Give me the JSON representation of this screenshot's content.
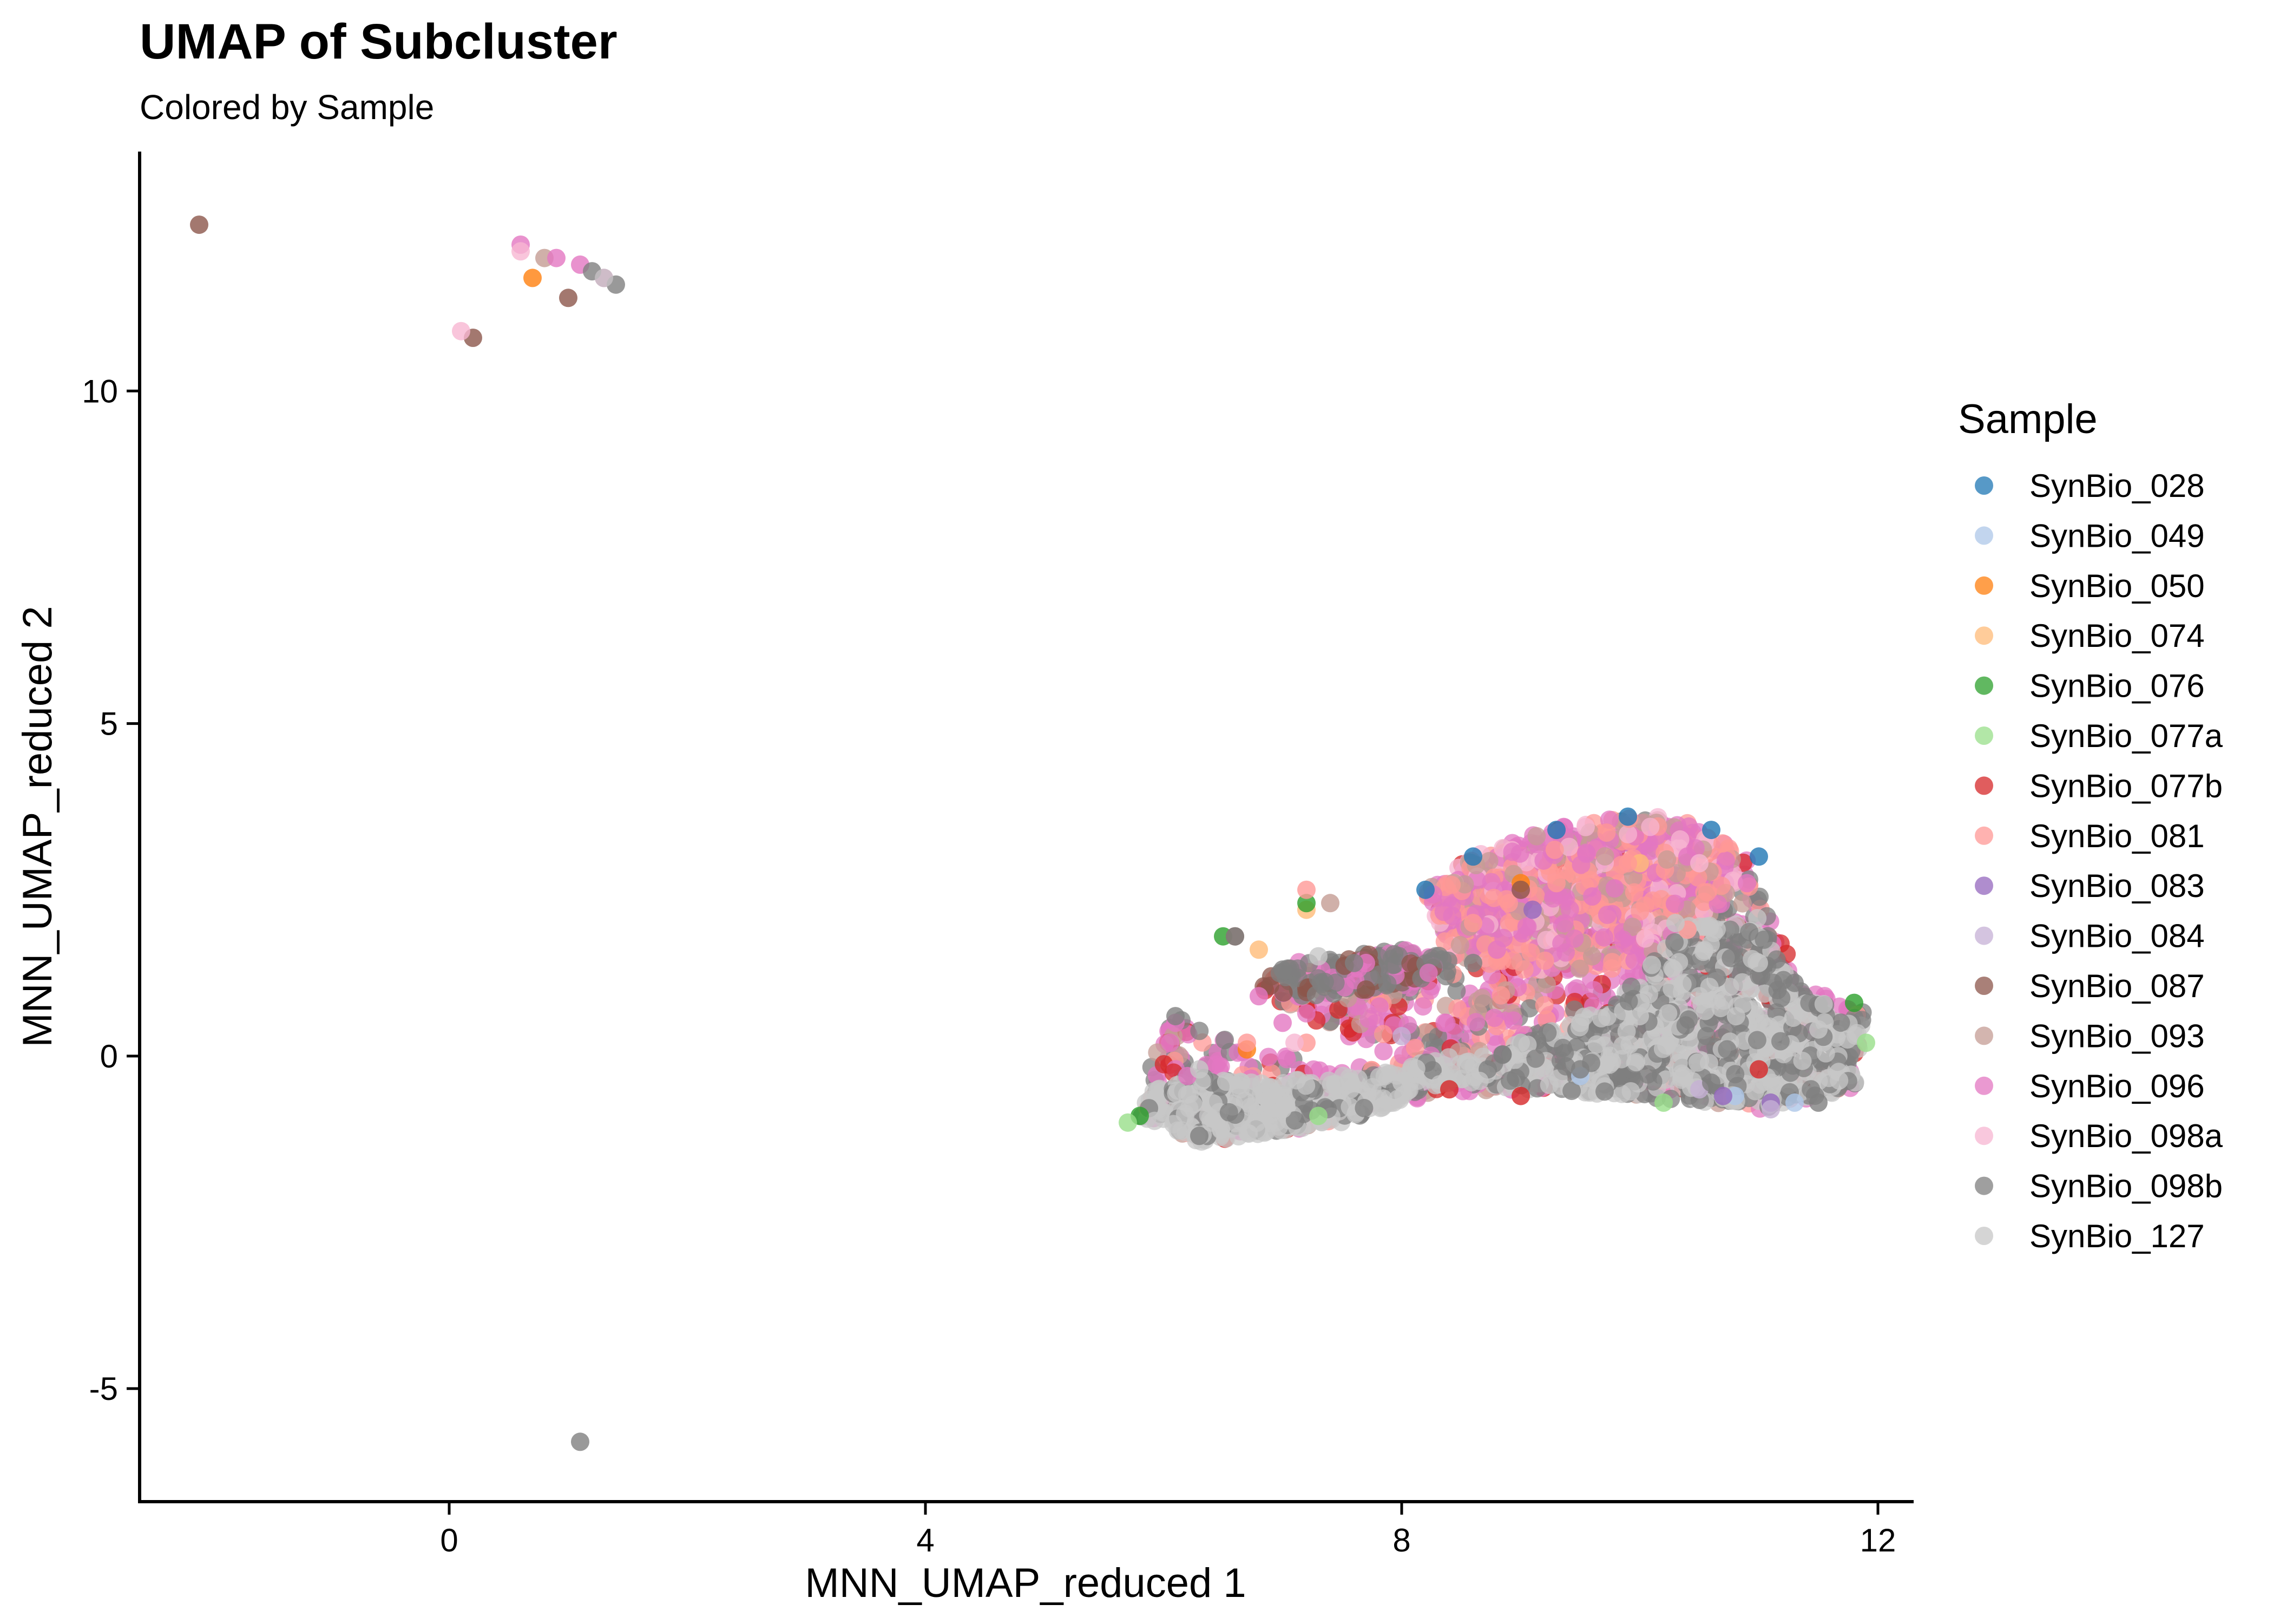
{
  "chart_data": {
    "type": "scatter",
    "title": "UMAP of Subcluster",
    "subtitle": "Colored by Sample",
    "xlabel": "MNN_UMAP_reduced 1",
    "ylabel": "MNN_UMAP_reduced 2",
    "xlim": [
      -2.6,
      12.3
    ],
    "ylim": [
      -6.7,
      13.6
    ],
    "x_ticks": [
      0,
      4,
      8,
      12
    ],
    "y_ticks": [
      -5,
      0,
      5,
      10
    ],
    "x_tick_labels": [
      "0",
      "4",
      "8",
      "12"
    ],
    "y_tick_labels": [
      "-5",
      "0",
      "5",
      "10"
    ],
    "grid": false,
    "legend_title": "Sample",
    "legend_position": "right",
    "series": [
      {
        "name": "SynBio_028",
        "color": "#1F77B4",
        "points": [
          [
            8.2,
            2.5
          ],
          [
            9.3,
            3.4
          ],
          [
            10.6,
            3.4
          ],
          [
            11.0,
            3.0
          ],
          [
            9.9,
            3.6
          ],
          [
            8.6,
            3.0
          ]
        ]
      },
      {
        "name": "SynBio_049",
        "color": "#AEC7E8",
        "points": [
          [
            10.8,
            -0.6
          ],
          [
            11.3,
            -0.7
          ],
          [
            9.5,
            -0.3
          ]
        ]
      },
      {
        "name": "SynBio_050",
        "color": "#FF7F0E",
        "points": [
          [
            0.7,
            11.7
          ],
          [
            6.7,
            0.1
          ],
          [
            9.0,
            2.6
          ]
        ]
      },
      {
        "name": "SynBio_074",
        "color": "#FFBB78",
        "points": [
          [
            7.2,
            2.2
          ],
          [
            6.8,
            1.6
          ],
          [
            10.0,
            2.9
          ]
        ]
      },
      {
        "name": "SynBio_076",
        "color": "#2CA02C",
        "points": [
          [
            7.2,
            2.3
          ],
          [
            6.5,
            1.8
          ],
          [
            5.8,
            -0.9
          ],
          [
            11.8,
            0.8
          ]
        ]
      },
      {
        "name": "SynBio_077a",
        "color": "#98DF8A",
        "points": [
          [
            11.9,
            0.2
          ],
          [
            5.7,
            -1.0
          ],
          [
            7.3,
            -0.9
          ],
          [
            10.2,
            -0.7
          ]
        ]
      },
      {
        "name": "SynBio_077b",
        "color": "#D62728",
        "points": [
          [
            9.0,
            -0.6
          ],
          [
            8.4,
            -0.5
          ],
          [
            11.0,
            -0.2
          ]
        ]
      },
      {
        "name": "SynBio_081",
        "color": "#FF9896",
        "points": [
          [
            7.2,
            2.5
          ],
          [
            8.6,
            2.0
          ],
          [
            9.3,
            2.6
          ],
          [
            9.9,
            2.9
          ],
          [
            10.4,
            1.9
          ],
          [
            6.7,
            0.2
          ],
          [
            7.2,
            0.2
          ],
          [
            8.9,
            2.3
          ]
        ]
      },
      {
        "name": "SynBio_083",
        "color": "#9467BD",
        "points": [
          [
            9.1,
            2.2
          ],
          [
            10.7,
            -0.6
          ],
          [
            11.1,
            -0.7
          ]
        ]
      },
      {
        "name": "SynBio_084",
        "color": "#C5B0D5",
        "points": [
          [
            8.0,
            0.3
          ],
          [
            11.1,
            -0.8
          ],
          [
            10.5,
            -0.5
          ]
        ]
      },
      {
        "name": "SynBio_087",
        "color": "#8C564B",
        "points": [
          [
            -2.1,
            12.5
          ],
          [
            0.2,
            10.8
          ],
          [
            1.0,
            11.4
          ],
          [
            7.7,
            1.0
          ],
          [
            9.0,
            2.5
          ],
          [
            6.6,
            1.8
          ]
        ]
      },
      {
        "name": "SynBio_093",
        "color": "#C49C94",
        "points": [
          [
            0.8,
            12.0
          ],
          [
            7.4,
            2.3
          ],
          [
            9.6,
            1.5
          ]
        ]
      },
      {
        "name": "SynBio_096",
        "color": "#E377C2",
        "points": [
          [
            0.6,
            12.2
          ],
          [
            0.9,
            12.0
          ],
          [
            1.1,
            11.9
          ],
          [
            1.3,
            11.7
          ],
          [
            6.2,
            -0.3
          ],
          [
            7.7,
            1.4
          ],
          [
            8.8,
            1.6
          ],
          [
            9.6,
            2.4
          ],
          [
            10.4,
            3.0
          ],
          [
            10.9,
            2.6
          ],
          [
            6.1,
            0.5
          ],
          [
            6.8,
            0.9
          ],
          [
            7.0,
            0.5
          ]
        ]
      },
      {
        "name": "SynBio_098a",
        "color": "#F7B6D2",
        "points": [
          [
            0.1,
            10.9
          ],
          [
            0.6,
            12.1
          ],
          [
            7.1,
            0.2
          ],
          [
            10.5,
            2.9
          ]
        ]
      },
      {
        "name": "SynBio_098b",
        "color": "#7F7F7F",
        "points": [
          [
            1.1,
            -5.8
          ],
          [
            1.2,
            11.8
          ],
          [
            1.4,
            11.6
          ],
          [
            6.1,
            0.6
          ],
          [
            6.3,
            -1.2
          ],
          [
            7.0,
            1.3
          ],
          [
            7.6,
            1.4
          ],
          [
            8.6,
            1.4
          ],
          [
            9.5,
            -0.2
          ],
          [
            10.6,
            -0.4
          ],
          [
            11.3,
            1.1
          ],
          [
            11.5,
            -0.7
          ],
          [
            6.6,
            1.8
          ]
        ]
      },
      {
        "name": "SynBio_127",
        "color": "#C7C7C7",
        "points": [
          [
            1.3,
            11.7
          ],
          [
            6.4,
            -1.0
          ],
          [
            7.0,
            -0.8
          ],
          [
            8.0,
            -0.4
          ],
          [
            9.0,
            0.2
          ],
          [
            9.5,
            0.5
          ],
          [
            10.0,
            0.6
          ],
          [
            10.5,
            0.9
          ],
          [
            11.0,
            1.4
          ],
          [
            11.5,
            0.4
          ],
          [
            10.3,
            2.0
          ],
          [
            6.3,
            -0.2
          ],
          [
            7.3,
            1.5
          ]
        ]
      }
    ]
  }
}
